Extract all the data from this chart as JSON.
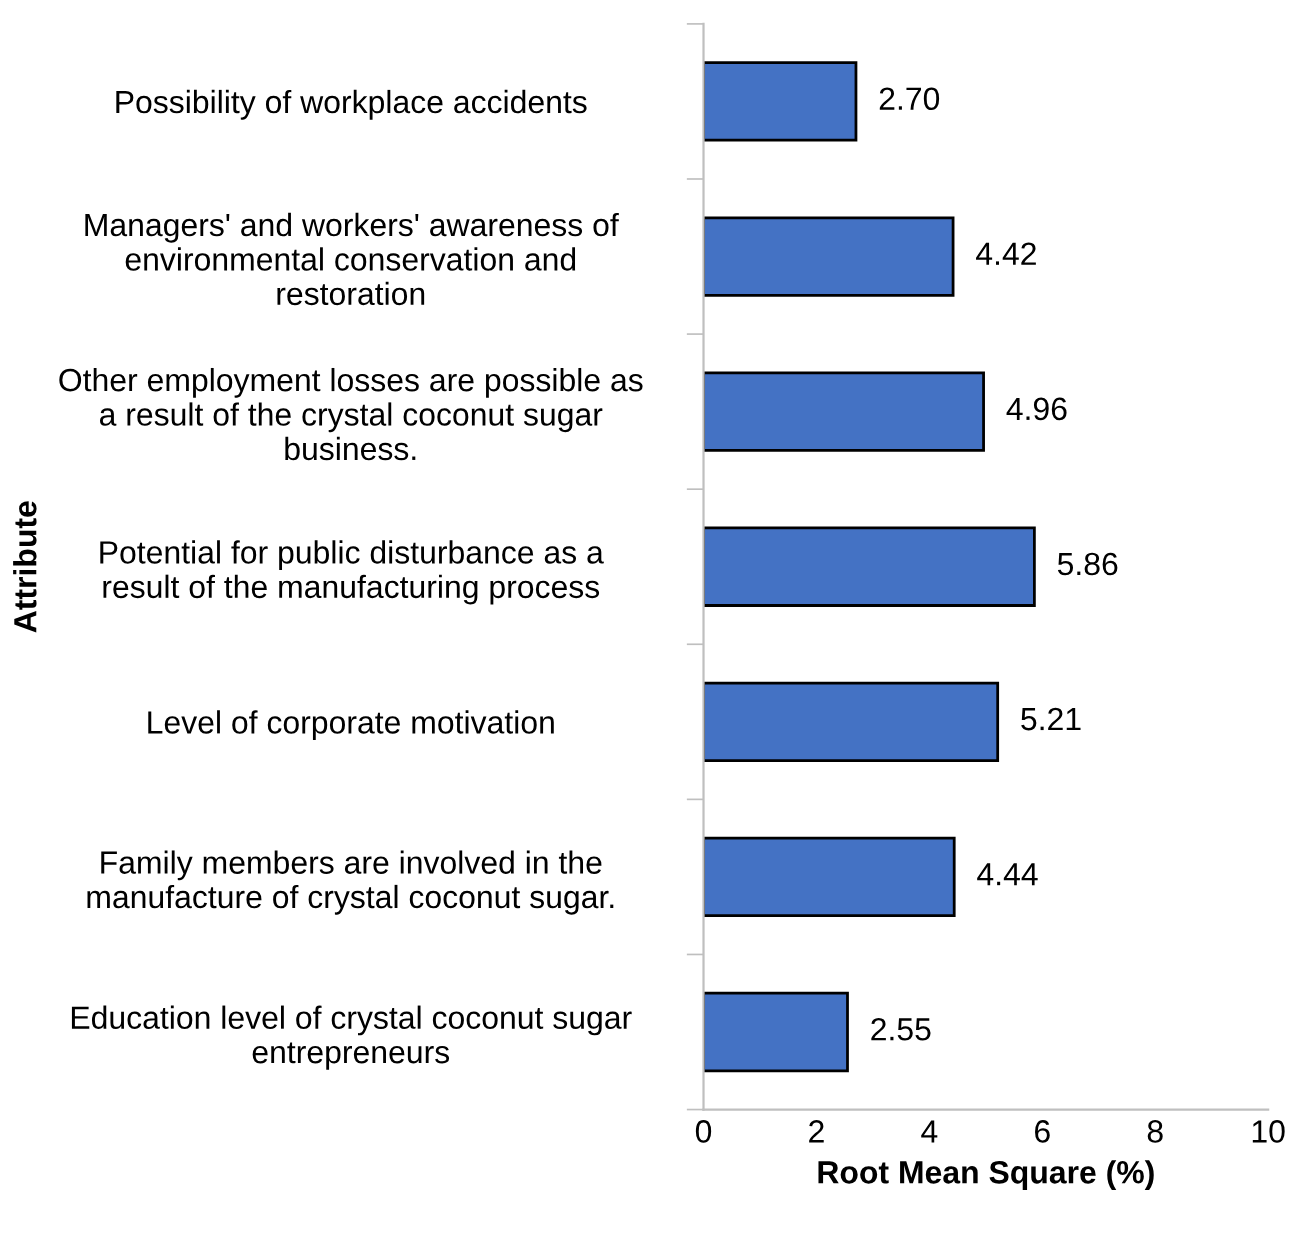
{
  "chart_data": {
    "type": "bar",
    "orientation": "horizontal",
    "ylabel": "Attribute",
    "xlabel": "Root Mean Square (%)",
    "categories": [
      "Possibility of workplace accidents",
      "Managers' and workers' awareness of\nenvironmental conservation and\nrestoration",
      "Other employment losses are possible as\na result of the crystal coconut sugar\nbusiness.",
      "Potential for public disturbance as a\nresult of the manufacturing process",
      "Level of corporate motivation",
      "Family members are involved in the\nmanufacture of crystal coconut sugar.",
      "Education level of crystal coconut sugar\nentrepreneurs"
    ],
    "values": [
      2.7,
      4.42,
      4.96,
      5.86,
      5.21,
      4.44,
      2.55
    ],
    "value_labels": [
      "2.70",
      "4.42",
      "4.96",
      "5.86",
      "5.21",
      "4.44",
      "2.55"
    ],
    "color": "#4472c4",
    "xlim": [
      0,
      10
    ],
    "xticks": [
      0,
      2,
      4,
      6,
      8,
      10
    ],
    "grid": false,
    "legend": false
  }
}
